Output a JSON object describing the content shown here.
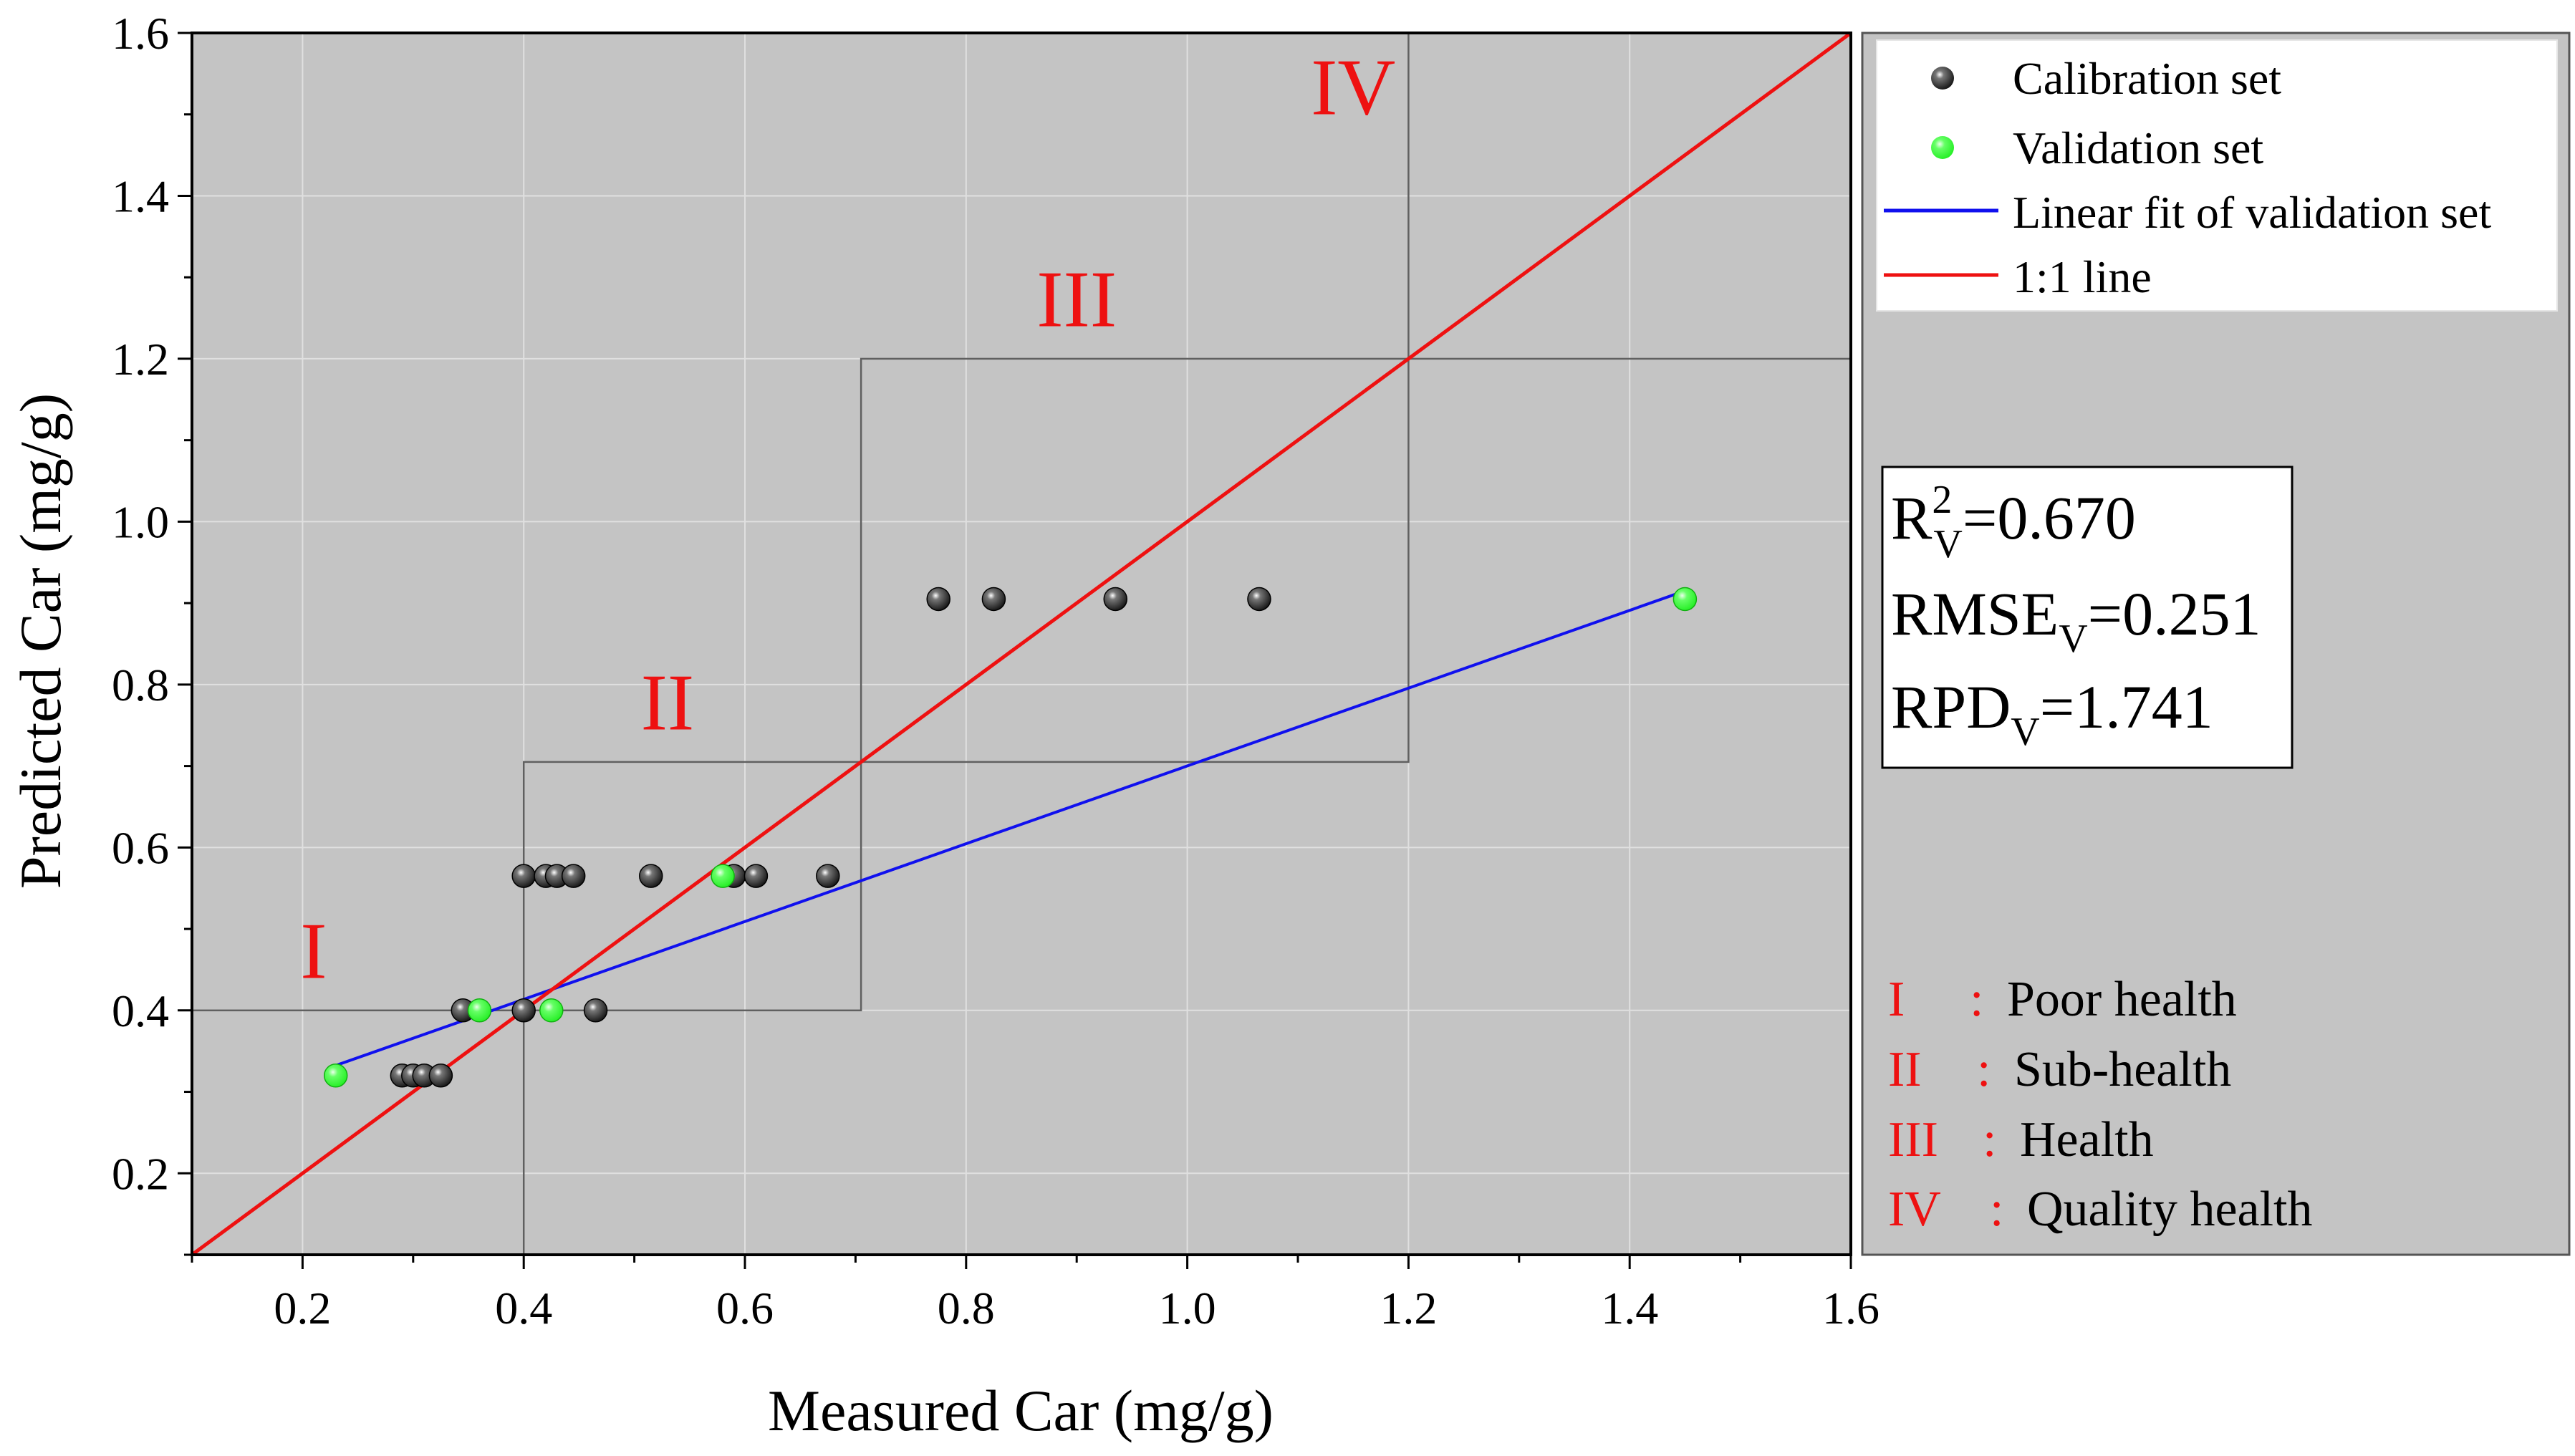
{
  "chart_data": {
    "type": "scatter",
    "xlabel": "Measured Car (mg/g)",
    "ylabel": "Predicted Car (mg/g)",
    "xlim": [
      0.1,
      1.6
    ],
    "ylim": [
      0.1,
      1.6
    ],
    "xticks": [
      0.2,
      0.4,
      0.6,
      0.8,
      1.0,
      1.2,
      1.4,
      1.6
    ],
    "yticks": [
      0.2,
      0.4,
      0.6,
      0.8,
      1.0,
      1.2,
      1.4,
      1.6
    ],
    "xtick_labels": [
      "0.2",
      "0.4",
      "0.6",
      "0.8",
      "1.0",
      "1.2",
      "1.4",
      "1.6"
    ],
    "ytick_labels": [
      "0.2",
      "0.4",
      "0.6",
      "0.8",
      "1.0",
      "1.2",
      "1.4",
      "1.6"
    ],
    "grid": true,
    "series": [
      {
        "name": "Calibration set",
        "color": "#111111",
        "points": [
          [
            0.29,
            0.32
          ],
          [
            0.3,
            0.32
          ],
          [
            0.31,
            0.32
          ],
          [
            0.325,
            0.32
          ],
          [
            0.345,
            0.4
          ],
          [
            0.4,
            0.4
          ],
          [
            0.465,
            0.4
          ],
          [
            0.4,
            0.565
          ],
          [
            0.42,
            0.565
          ],
          [
            0.43,
            0.565
          ],
          [
            0.445,
            0.565
          ],
          [
            0.515,
            0.565
          ],
          [
            0.59,
            0.565
          ],
          [
            0.61,
            0.565
          ],
          [
            0.675,
            0.565
          ],
          [
            0.775,
            0.905
          ],
          [
            0.825,
            0.905
          ],
          [
            0.935,
            0.905
          ],
          [
            1.065,
            0.905
          ]
        ]
      },
      {
        "name": "Validation set",
        "color": "#22ee22",
        "points": [
          [
            0.23,
            0.32
          ],
          [
            0.36,
            0.4
          ],
          [
            0.425,
            0.4
          ],
          [
            0.58,
            0.565
          ],
          [
            1.45,
            0.905
          ]
        ]
      }
    ],
    "lines": [
      {
        "name": "Linear fit of validation set",
        "color": "#1010ee",
        "x": [
          0.225,
          1.45
        ],
        "y": [
          0.33,
          0.915
        ]
      },
      {
        "name": "1:1 line",
        "color": "#ee1111",
        "x": [
          0.1,
          1.6
        ],
        "y": [
          0.1,
          1.6
        ]
      }
    ],
    "regions": [
      {
        "label": "I",
        "x": [
          0.1,
          0.4
        ],
        "y": [
          0.1,
          0.4
        ],
        "label_at": [
          0.21,
          0.44
        ]
      },
      {
        "label": "II",
        "x": [
          0.4,
          0.705
        ],
        "y": [
          0.4,
          0.705
        ],
        "label_at": [
          0.53,
          0.745
        ]
      },
      {
        "label": "III",
        "x": [
          0.705,
          1.2
        ],
        "y": [
          0.705,
          1.2
        ],
        "label_at": [
          0.9,
          1.24
        ]
      },
      {
        "label": "IV",
        "x": [
          1.2,
          1.6
        ],
        "y": [
          1.2,
          1.6
        ],
        "label_at": [
          1.15,
          1.5
        ]
      }
    ],
    "legend": {
      "placement": "right",
      "entries": [
        {
          "label": "Calibration set",
          "kind": "marker",
          "color": "#111111"
        },
        {
          "label": "Validation set",
          "kind": "marker",
          "color": "#22ee22"
        },
        {
          "label": "Linear fit of validation set",
          "kind": "line",
          "color": "#1010ee"
        },
        {
          "label": "1:1 line",
          "kind": "line",
          "color": "#ee1111"
        }
      ]
    },
    "stats": {
      "r2": {
        "prefix": "R",
        "sup": "2",
        "sub": "V",
        "value": "=0.670"
      },
      "rmse": {
        "prefix": "RMSE",
        "sub": "V",
        "value": "=0.251"
      },
      "rpd": {
        "prefix": "RPD",
        "sub": "V",
        "value": "=1.741"
      }
    },
    "key": [
      {
        "numeral": "I",
        "sep": ":",
        "text": "Poor health"
      },
      {
        "numeral": "II",
        "sep": ":",
        "text": "Sub-health"
      },
      {
        "numeral": "III",
        "sep": ":",
        "text": "Health"
      },
      {
        "numeral": "IV",
        "sep": ":",
        "text": "Quality health"
      }
    ],
    "colors": {
      "plot_bg": "#c4c4c4",
      "side_bg": "#c4c4c4",
      "grid": "#e0e0e0",
      "region_border": "#606060",
      "region_label": "#ee1111",
      "axis": "#000000"
    }
  }
}
